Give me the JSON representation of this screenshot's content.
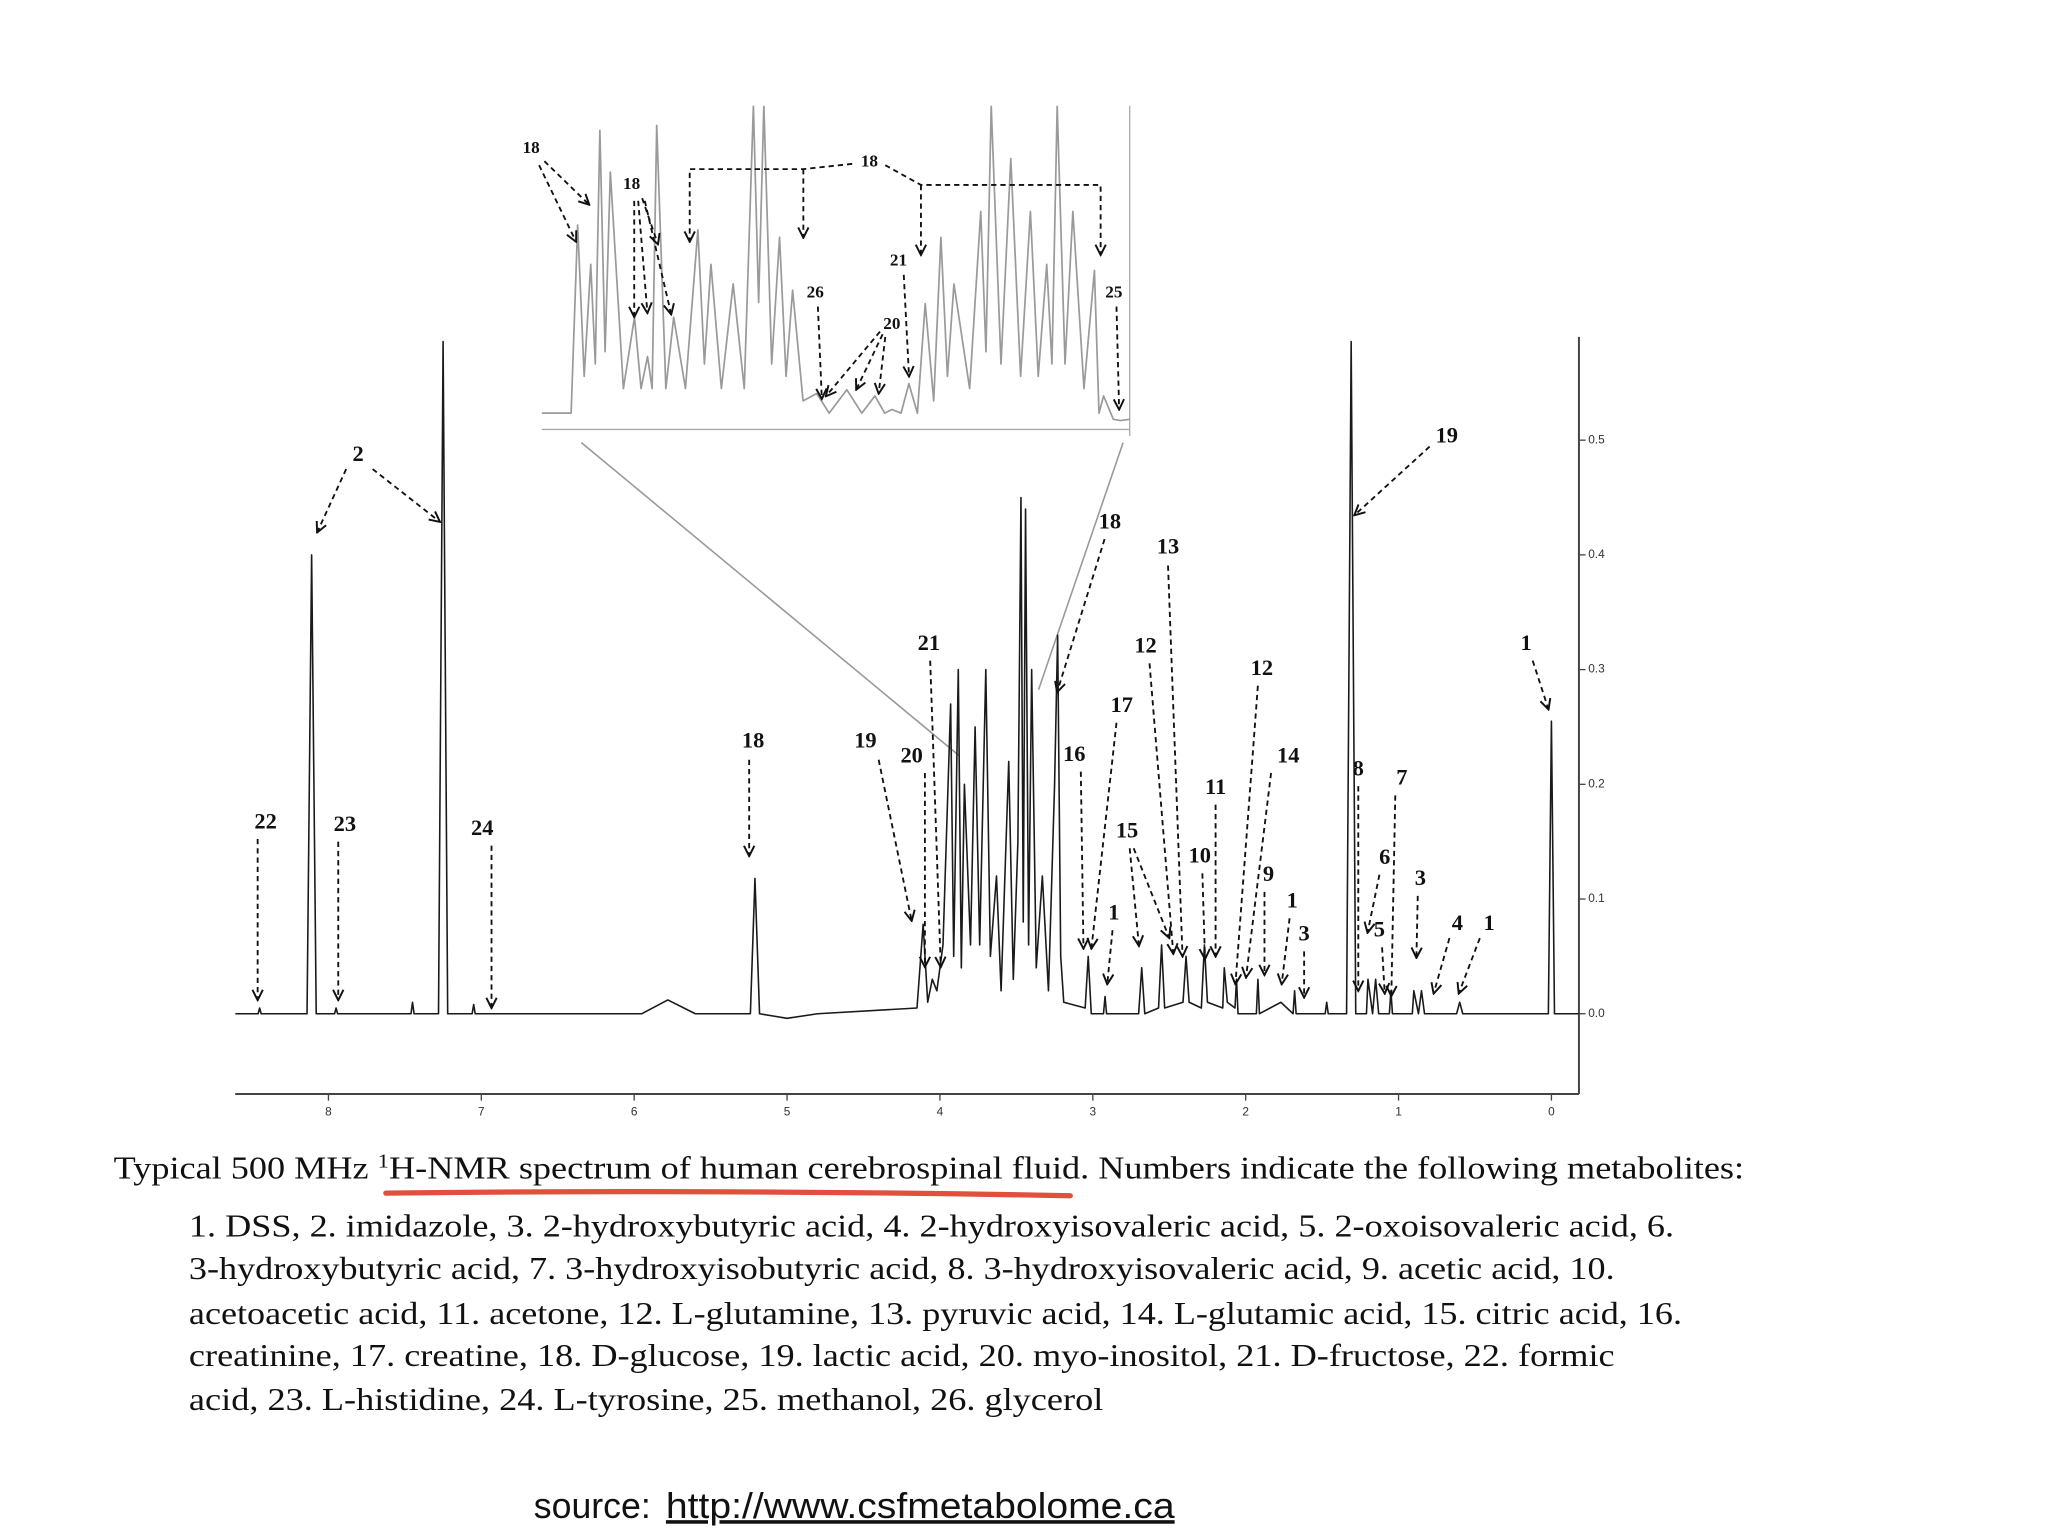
{
  "chart_data": [
    {
      "type": "line",
      "color": "#1a1a1a",
      "y_axis": "right",
      "x": [
        8.61,
        8.46,
        8.45,
        8.44,
        8.14,
        8.11,
        8.08,
        7.96,
        7.95,
        7.94,
        7.46,
        7.45,
        7.44,
        7.28,
        7.25,
        7.22,
        7.06,
        7.05,
        7.04,
        5.95,
        5.78,
        5.6,
        5.24,
        5.21,
        5.18,
        5.0,
        4.8,
        4.15,
        4.11,
        4.08,
        4.05,
        4.02,
        3.98,
        3.93,
        3.91,
        3.88,
        3.86,
        3.84,
        3.8,
        3.77,
        3.74,
        3.7,
        3.67,
        3.63,
        3.6,
        3.55,
        3.52,
        3.49,
        3.47,
        3.455,
        3.44,
        3.42,
        3.4,
        3.37,
        3.33,
        3.29,
        3.25,
        3.23,
        3.21,
        3.19,
        3.05,
        3.03,
        3.01,
        2.93,
        2.92,
        2.91,
        2.7,
        2.68,
        2.66,
        2.57,
        2.55,
        2.53,
        2.41,
        2.39,
        2.37,
        2.29,
        2.27,
        2.25,
        2.15,
        2.14,
        2.12,
        2.07,
        2.06,
        2.05,
        1.93,
        1.92,
        1.91,
        1.77,
        1.69,
        1.68,
        1.67,
        1.48,
        1.47,
        1.46,
        1.34,
        1.31,
        1.28,
        1.21,
        1.2,
        1.17,
        1.15,
        1.13,
        1.06,
        1.05,
        1.04,
        0.91,
        0.9,
        0.87,
        0.85,
        0.83,
        0.62,
        0.6,
        0.58,
        0.02,
        0.0,
        -0.02,
        -0.18
      ],
      "values": [
        0,
        0,
        0.005,
        0,
        0,
        0.4,
        0,
        0,
        0.005,
        0,
        0,
        0.01,
        0,
        0,
        0.586,
        0,
        0,
        0.008,
        0,
        0,
        0.012,
        0,
        0,
        0.118,
        0,
        -0.004,
        0,
        0.005,
        0.078,
        0.01,
        0.03,
        0.02,
        0.06,
        0.27,
        0.05,
        0.3,
        0.04,
        0.2,
        0.06,
        0.25,
        0.06,
        0.3,
        0.05,
        0.12,
        0.02,
        0.22,
        0.03,
        0.15,
        0.45,
        0.08,
        0.44,
        0.06,
        0.3,
        0.04,
        0.12,
        0.02,
        0.2,
        0.33,
        0.05,
        0.01,
        0.005,
        0.05,
        0,
        0,
        0.015,
        0,
        0,
        0.04,
        0,
        0.005,
        0.06,
        0.005,
        0.01,
        0.05,
        0.01,
        0.005,
        0.06,
        0.01,
        0.005,
        0.04,
        0.01,
        0.005,
        0.03,
        0,
        0,
        0.03,
        0,
        0.01,
        0,
        0.02,
        0,
        0,
        0.01,
        0,
        0,
        0.586,
        0,
        0,
        0.03,
        0,
        0.03,
        0,
        0,
        0.02,
        0,
        0,
        0.02,
        0,
        0.02,
        0,
        0,
        0.01,
        0,
        0,
        0.255,
        0,
        0
      ],
      "xlim": [
        8.61,
        -0.18
      ],
      "ylim": [
        -0.07,
        0.59
      ],
      "xticks": [
        8,
        7,
        6,
        5,
        4,
        3,
        2,
        1,
        0
      ],
      "yticks": [
        {
          "value": 0,
          "label": "0.0"
        },
        0.1,
        0.2,
        0.3,
        0.4,
        0.5
      ],
      "annotations": [
        "2",
        "22",
        "23",
        "24",
        "18",
        "19",
        "20",
        "21",
        "18",
        "13",
        "12",
        "17",
        "16",
        "1",
        "15",
        "12",
        "14",
        "11",
        "10",
        "9",
        "1",
        "3",
        "8",
        "7",
        "6",
        "5",
        "3",
        "4",
        "1",
        "1",
        "19"
      ]
    },
    {
      "type": "line",
      "color": "#9a9a9a",
      "y_axis": "right",
      "x": [
        4.1,
        4.055,
        4.045,
        4.035,
        4.025,
        4.018,
        4.011,
        4.003,
        3.995,
        3.975,
        3.958,
        3.948,
        3.938,
        3.931,
        3.924,
        3.91,
        3.898,
        3.88,
        3.861,
        3.851,
        3.841,
        3.825,
        3.807,
        3.79,
        3.776,
        3.768,
        3.76,
        3.748,
        3.736,
        3.726,
        3.716,
        3.7,
        3.679,
        3.66,
        3.633,
        3.61,
        3.59,
        3.575,
        3.564,
        3.55,
        3.538,
        3.525,
        3.513,
        3.5,
        3.489,
        3.479,
        3.469,
        3.445,
        3.428,
        3.42,
        3.412,
        3.397,
        3.382,
        3.367,
        3.352,
        3.34,
        3.327,
        3.319,
        3.311,
        3.299,
        3.287,
        3.27,
        3.254,
        3.247,
        3.24,
        3.225,
        3.214,
        3.2
      ],
      "values": [
        0.01,
        0.01,
        0.163,
        0.04,
        0.131,
        0.05,
        0.24,
        0.06,
        0.206,
        0.03,
        0.088,
        0.03,
        0.056,
        0.03,
        0.244,
        0.03,
        0.088,
        0.03,
        0.159,
        0.05,
        0.131,
        0.03,
        0.115,
        0.03,
        0.26,
        0.1,
        0.26,
        0.05,
        0.153,
        0.04,
        0.11,
        0.02,
        0.026,
        0.01,
        0.029,
        0.01,
        0.024,
        0.01,
        0.013,
        0.01,
        0.034,
        0.01,
        0.099,
        0.02,
        0.153,
        0.04,
        0.115,
        0.03,
        0.174,
        0.06,
        0.26,
        0.05,
        0.217,
        0.04,
        0.174,
        0.04,
        0.131,
        0.05,
        0.26,
        0.05,
        0.174,
        0.03,
        0.126,
        0.01,
        0.024,
        0.005,
        0.004,
        0.005
      ],
      "xlim": [
        4.1,
        3.2
      ],
      "ylim": [
        0,
        0.26
      ],
      "annotations": [
        "18",
        "18",
        "18",
        "21",
        "26",
        "20",
        "25"
      ]
    }
  ],
  "caption": {
    "title": [
      "Typical 500 MHz ",
      "1",
      "H-NMR spectrum of human cerebrospinal fluid. Numbers indicate the following metabolites:"
    ],
    "legend_lines": [
      "1. DSS, 2. imidazole, 3. 2-hydroxybutyric acid, 4. 2-hydroxyisovaleric acid, 5. 2-oxoisovaleric acid, 6.",
      "3-hydroxybutyric acid, 7. 3-hydroxyisobutyric acid, 8. 3-hydroxyisovaleric acid, 9. acetic acid, 10.",
      "acetoacetic acid, 11. acetone, 12. L-glutamine, 13. pyruvic acid, 14. L-glutamic acid, 15. citric acid, 16.",
      "creatinine, 17. creatine, 18. D-glucose, 19. lactic acid, 20. myo-inositol, 21. D-fructose, 22. formic",
      "acid, 23. L-histidine, 24. L-tyrosine, 25. methanol, 26. glycerol"
    ]
  },
  "source": {
    "label": "source:",
    "url": "http://www.csfmetabolome.ca"
  }
}
